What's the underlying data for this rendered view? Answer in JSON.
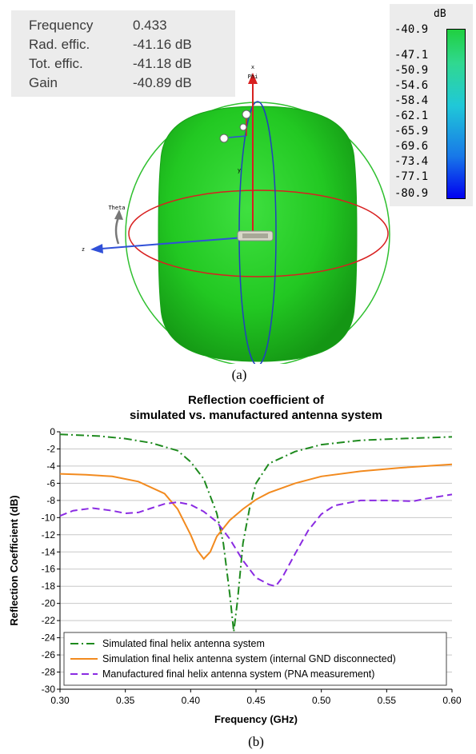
{
  "panel_a": {
    "info": [
      {
        "label": "Frequency",
        "value": "0.433"
      },
      {
        "label": "Rad. effic.",
        "value": "-41.16 dB"
      },
      {
        "label": "Tot. effic.",
        "value": "-41.18 dB"
      },
      {
        "label": "Gain",
        "value": "-40.89 dB"
      }
    ],
    "colorbar": {
      "unit": "dB",
      "ticks": [
        "-40.9",
        "-47.1",
        "-50.9",
        "-54.6",
        "-58.4",
        "-62.1",
        "-65.9",
        "-69.6",
        "-73.4",
        "-77.1",
        "-80.9"
      ]
    },
    "axis_labels": {
      "x": "x",
      "phi": "Phi",
      "theta": "Theta",
      "z": "z",
      "y": "y"
    },
    "colors": {
      "pattern": "#22cc22",
      "theta_ring": "#d82020",
      "phi_ring": "#2040c0",
      "outer_circle": "#30c030"
    },
    "caption": "(a)"
  },
  "chart_data": {
    "type": "line",
    "title": [
      "Reflection coefficient of",
      "simulated vs. manufactured antenna system"
    ],
    "xlabel": "Frequency (GHz)",
    "ylabel": "Reflection Coefficient (dB)",
    "xlim": [
      0.3,
      0.6
    ],
    "ylim": [
      -30,
      0
    ],
    "xticks": [
      "0.30",
      "0.35",
      "0.40",
      "0.45",
      "0.50",
      "0.55",
      "0.60"
    ],
    "yticks": [
      "0",
      "-2",
      "-4",
      "-6",
      "-8",
      "-10",
      "-12",
      "-14",
      "-16",
      "-18",
      "-20",
      "-22",
      "-24",
      "-26",
      "-28",
      "-30"
    ],
    "grid": "horizontal",
    "legend_position": "bottom",
    "series": [
      {
        "name": "Simulated final helix antenna system",
        "color": "#1e8a1e",
        "dash": "dash-dot",
        "points": [
          [
            0.3,
            -0.3
          ],
          [
            0.33,
            -0.5
          ],
          [
            0.35,
            -0.8
          ],
          [
            0.37,
            -1.3
          ],
          [
            0.39,
            -2.2
          ],
          [
            0.4,
            -3.5
          ],
          [
            0.41,
            -5.5
          ],
          [
            0.42,
            -9.5
          ],
          [
            0.425,
            -13
          ],
          [
            0.43,
            -19
          ],
          [
            0.433,
            -23.3
          ],
          [
            0.436,
            -19.5
          ],
          [
            0.44,
            -13
          ],
          [
            0.445,
            -9
          ],
          [
            0.45,
            -6
          ],
          [
            0.46,
            -3.7
          ],
          [
            0.48,
            -2.3
          ],
          [
            0.5,
            -1.5
          ],
          [
            0.53,
            -1.0
          ],
          [
            0.56,
            -0.8
          ],
          [
            0.6,
            -0.6
          ]
        ]
      },
      {
        "name": "Simulation final helix antenna system (internal GND disconnected)",
        "color": "#f28a1e",
        "dash": "solid",
        "points": [
          [
            0.3,
            -4.9
          ],
          [
            0.32,
            -5.0
          ],
          [
            0.34,
            -5.2
          ],
          [
            0.36,
            -5.8
          ],
          [
            0.38,
            -7.2
          ],
          [
            0.39,
            -9.0
          ],
          [
            0.4,
            -12.0
          ],
          [
            0.405,
            -13.8
          ],
          [
            0.41,
            -14.8
          ],
          [
            0.415,
            -14.0
          ],
          [
            0.42,
            -12.2
          ],
          [
            0.43,
            -10.3
          ],
          [
            0.44,
            -9.0
          ],
          [
            0.45,
            -7.9
          ],
          [
            0.46,
            -7.1
          ],
          [
            0.48,
            -6.0
          ],
          [
            0.5,
            -5.2
          ],
          [
            0.53,
            -4.6
          ],
          [
            0.56,
            -4.2
          ],
          [
            0.6,
            -3.8
          ]
        ]
      },
      {
        "name": "Manufactured final helix antenna system (PNA measurement)",
        "color": "#8a2be2",
        "dash": "dash",
        "points": [
          [
            0.3,
            -9.8
          ],
          [
            0.31,
            -9.2
          ],
          [
            0.325,
            -8.9
          ],
          [
            0.34,
            -9.2
          ],
          [
            0.35,
            -9.5
          ],
          [
            0.36,
            -9.4
          ],
          [
            0.37,
            -8.9
          ],
          [
            0.38,
            -8.4
          ],
          [
            0.39,
            -8.2
          ],
          [
            0.4,
            -8.5
          ],
          [
            0.41,
            -9.3
          ],
          [
            0.42,
            -10.5
          ],
          [
            0.43,
            -12.5
          ],
          [
            0.44,
            -15.0
          ],
          [
            0.45,
            -17.0
          ],
          [
            0.46,
            -17.8
          ],
          [
            0.465,
            -18.0
          ],
          [
            0.47,
            -17.0
          ],
          [
            0.48,
            -14.2
          ],
          [
            0.49,
            -11.5
          ],
          [
            0.5,
            -9.6
          ],
          [
            0.51,
            -8.6
          ],
          [
            0.53,
            -8.0
          ],
          [
            0.55,
            -8.0
          ],
          [
            0.57,
            -8.1
          ],
          [
            0.58,
            -7.8
          ],
          [
            0.6,
            -7.3
          ]
        ]
      }
    ],
    "caption": "(b)"
  }
}
